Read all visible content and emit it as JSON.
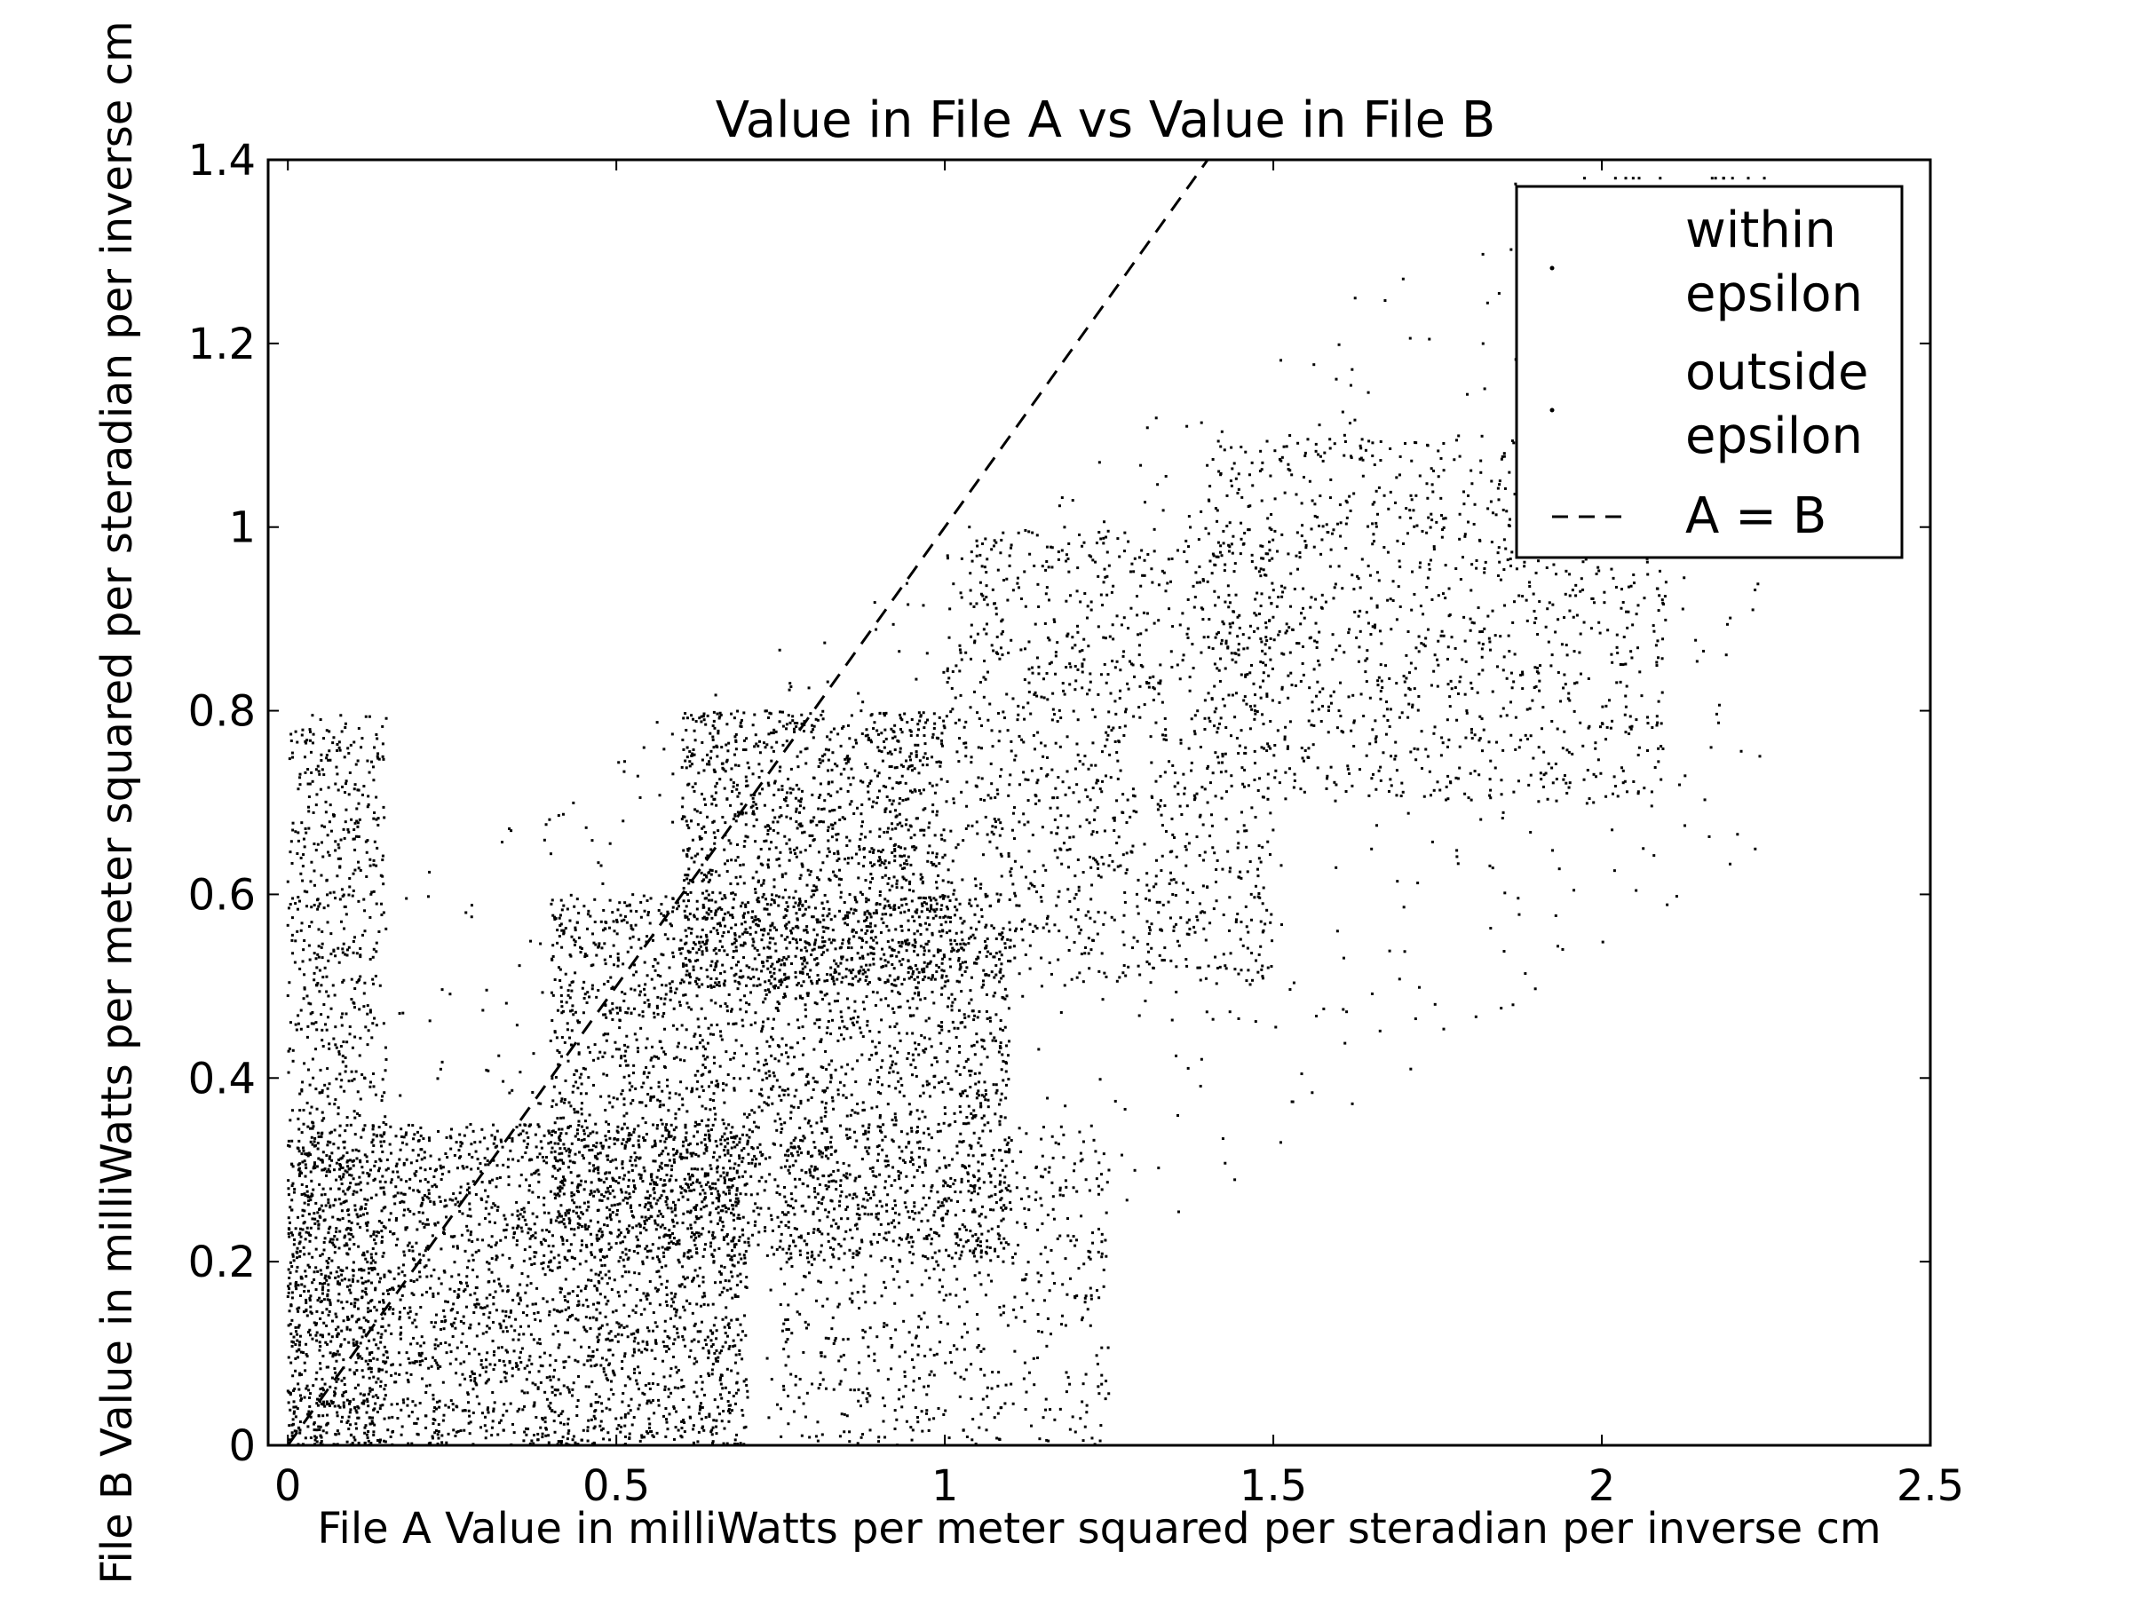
{
  "chart_data": {
    "type": "scatter",
    "title": "Value in File A vs Value in File B",
    "xlabel": "File A Value in milliWatts per meter squared per steradian per inverse cm",
    "ylabel": "File B Value in milliWatts per meter squared per steradian per inverse cm",
    "xlim": [
      -0.03,
      2.5
    ],
    "ylim": [
      0,
      1.4
    ],
    "xticks": [
      0,
      0.5,
      1,
      1.5,
      2,
      2.5
    ],
    "xtick_labels": [
      "0",
      "0.5",
      "1",
      "1.5",
      "2",
      "2.5"
    ],
    "yticks": [
      0,
      0.2,
      0.4,
      0.6,
      0.8,
      1.0,
      1.2,
      1.4
    ],
    "ytick_labels": [
      "0",
      "0.2",
      "0.4",
      "0.6",
      "0.8",
      "1",
      "1.2",
      "1.4"
    ],
    "grid": false,
    "legend_position": "top-right",
    "legend": [
      {
        "label_lines": [
          "within",
          "epsilon"
        ],
        "marker": "dot"
      },
      {
        "label_lines": [
          "outside",
          "epsilon"
        ],
        "marker": "dot"
      },
      {
        "label_lines": [
          "A = B"
        ],
        "marker": "dashed-line"
      }
    ],
    "series": [
      {
        "name": "within epsilon",
        "color": "#000000",
        "points": [
          [
            0.05,
            0.02
          ],
          [
            0.1,
            0.05
          ],
          [
            0.15,
            0.08
          ],
          [
            0.2,
            0.1
          ],
          [
            0.3,
            0.15
          ],
          [
            0.4,
            0.2
          ],
          [
            0.5,
            0.22
          ],
          [
            0.6,
            0.28
          ],
          [
            0.7,
            0.33
          ],
          [
            0.8,
            0.4
          ],
          [
            0.9,
            0.45
          ],
          [
            1.0,
            0.5
          ],
          [
            1.1,
            0.55
          ],
          [
            1.2,
            0.6
          ],
          [
            1.4,
            0.7
          ],
          [
            1.6,
            0.8
          ],
          [
            1.8,
            0.9
          ],
          [
            1.9,
            0.95
          ]
        ]
      },
      {
        "name": "outside epsilon",
        "color": "#000000",
        "clusters": [
          {
            "x": [
              0.0,
              0.7
            ],
            "y": [
              0.0,
              0.35
            ]
          },
          {
            "x": [
              0.4,
              1.1
            ],
            "y": [
              0.2,
              0.6
            ]
          },
          {
            "x": [
              0.0,
              0.15
            ],
            "y": [
              0.0,
              0.8
            ]
          },
          {
            "x": [
              0.6,
              1.0
            ],
            "y": [
              0.5,
              0.8
            ]
          },
          {
            "x": [
              1.0,
              1.5
            ],
            "y": [
              0.5,
              1.0
            ]
          },
          {
            "x": [
              1.4,
              2.1
            ],
            "y": [
              0.7,
              1.1
            ]
          },
          {
            "x": [
              0.75,
              1.25
            ],
            "y": [
              0.0,
              0.35
            ]
          }
        ]
      },
      {
        "name": "A = B",
        "style": "dashed",
        "points": [
          [
            0,
            0
          ],
          [
            1.4,
            1.4
          ]
        ]
      }
    ]
  }
}
